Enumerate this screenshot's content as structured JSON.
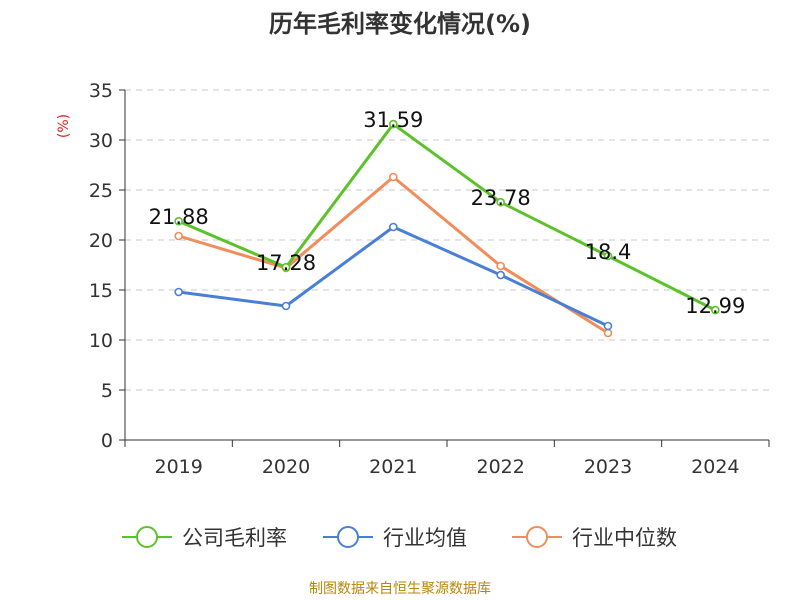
{
  "title": "历年毛利率变化情况(%)",
  "source": "制图数据来自恒生聚源数据库",
  "chart_data": {
    "type": "line",
    "title": "历年毛利率变化情况(%)",
    "ylabel": "(%)",
    "ylabel_color": "#e02020",
    "ylim": [
      0,
      35
    ],
    "yticks": [
      "0",
      "5",
      "10",
      "15",
      "20",
      "25",
      "30",
      "35"
    ],
    "categories": [
      "2019",
      "2020",
      "2021",
      "2022",
      "2023",
      "2024"
    ],
    "grid": true,
    "legend_position": "bottom",
    "series": [
      {
        "name": "公司毛利率",
        "color": "#5cc22a",
        "values": [
          21.88,
          17.28,
          31.59,
          23.78,
          18.4,
          12.99
        ],
        "labels": [
          "21.88",
          "17.28",
          "31.59",
          "23.78",
          "18.4",
          "12.99"
        ],
        "show_labels": true
      },
      {
        "name": "行业均值",
        "color": "#4a7fd6",
        "values": [
          14.8,
          13.4,
          21.3,
          16.5,
          11.4,
          null
        ],
        "show_labels": false
      },
      {
        "name": "行业中位数",
        "color": "#f28c5a",
        "values": [
          20.4,
          17.2,
          26.3,
          17.4,
          10.7,
          null
        ],
        "show_labels": false
      }
    ]
  }
}
